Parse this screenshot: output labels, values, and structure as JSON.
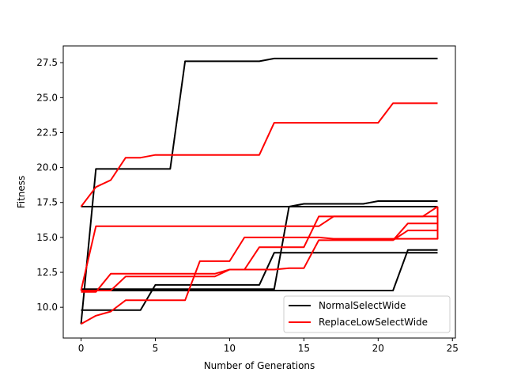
{
  "chart_data": {
    "type": "line",
    "title": "",
    "xlabel": "Number of Generations",
    "ylabel": "Fitness",
    "xlim": [
      -1.2,
      25.2
    ],
    "ylim": [
      7.8,
      28.7
    ],
    "x_ticks": [
      0,
      5,
      10,
      15,
      20,
      25
    ],
    "y_ticks": [
      10.0,
      12.5,
      15.0,
      17.5,
      20.0,
      22.5,
      25.0,
      27.5
    ],
    "x_tick_labels": [
      "0",
      "5",
      "10",
      "15",
      "20",
      "25"
    ],
    "y_tick_labels": [
      "10.0",
      "12.5",
      "15.0",
      "17.5",
      "20.0",
      "22.5",
      "25.0",
      "27.5"
    ],
    "grid": false,
    "legend_position": "lower-right",
    "legend": [
      {
        "label": "NormalSelectWide",
        "color": "#000000"
      },
      {
        "label": "ReplaceLowSelectWide",
        "color": "#ff0000"
      }
    ],
    "series": [
      {
        "group": 0,
        "color": "#000000",
        "points": [
          [
            0,
            8.8
          ],
          [
            1,
            19.9
          ],
          [
            6,
            19.9
          ],
          [
            7,
            27.6
          ],
          [
            12,
            27.6
          ],
          [
            13,
            27.8
          ],
          [
            24,
            27.8
          ]
        ]
      },
      {
        "group": 0,
        "color": "#000000",
        "points": [
          [
            0,
            17.2
          ],
          [
            14,
            17.2
          ],
          [
            15,
            17.4
          ],
          [
            19,
            17.4
          ],
          [
            20,
            17.6
          ],
          [
            24,
            17.6
          ]
        ]
      },
      {
        "group": 0,
        "color": "#000000",
        "points": [
          [
            0,
            11.3
          ],
          [
            13,
            11.3
          ],
          [
            14,
            17.2
          ],
          [
            24,
            17.2
          ]
        ]
      },
      {
        "group": 0,
        "color": "#000000",
        "points": [
          [
            0,
            9.8
          ],
          [
            4,
            9.8
          ],
          [
            5,
            11.6
          ],
          [
            12,
            11.6
          ],
          [
            13,
            13.9
          ],
          [
            24,
            13.9
          ]
        ]
      },
      {
        "group": 0,
        "color": "#000000",
        "points": [
          [
            0,
            11.2
          ],
          [
            21,
            11.2
          ],
          [
            22,
            14.1
          ],
          [
            24,
            14.1
          ]
        ]
      },
      {
        "group": 1,
        "color": "#ff0000",
        "points": [
          [
            0,
            17.2
          ],
          [
            1,
            18.6
          ],
          [
            2,
            19.1
          ],
          [
            3,
            20.7
          ],
          [
            4,
            20.7
          ],
          [
            5,
            20.9
          ],
          [
            12,
            20.9
          ],
          [
            13,
            23.2
          ],
          [
            20,
            23.2
          ],
          [
            21,
            24.6
          ],
          [
            24,
            24.6
          ]
        ]
      },
      {
        "group": 1,
        "color": "#ff0000",
        "points": [
          [
            0,
            11.2
          ],
          [
            1,
            15.8
          ],
          [
            16,
            15.8
          ],
          [
            17,
            16.5
          ],
          [
            24,
            16.5
          ]
        ]
      },
      {
        "group": 1,
        "color": "#ff0000",
        "points": [
          [
            0,
            8.8
          ],
          [
            1,
            9.4
          ],
          [
            2,
            9.7
          ],
          [
            3,
            10.5
          ],
          [
            7,
            10.5
          ],
          [
            8,
            13.3
          ],
          [
            10,
            13.3
          ],
          [
            11,
            15.0
          ],
          [
            16,
            15.0
          ],
          [
            17,
            14.9
          ],
          [
            24,
            14.9
          ],
          [
            24,
            17.2
          ]
        ]
      },
      {
        "group": 1,
        "color": "#ff0000",
        "points": [
          [
            0,
            11.1
          ],
          [
            1,
            11.1
          ],
          [
            2,
            12.4
          ],
          [
            9,
            12.4
          ],
          [
            10,
            12.7
          ],
          [
            11,
            12.7
          ],
          [
            12,
            14.3
          ],
          [
            15,
            14.3
          ],
          [
            16,
            16.5
          ],
          [
            23,
            16.5
          ],
          [
            24,
            17.2
          ]
        ]
      },
      {
        "group": 1,
        "color": "#ff0000",
        "points": [
          [
            0,
            11.2
          ],
          [
            2,
            11.2
          ],
          [
            3,
            12.2
          ],
          [
            9,
            12.2
          ],
          [
            10,
            12.7
          ],
          [
            12,
            12.7
          ],
          [
            13,
            12.7
          ],
          [
            14,
            12.8
          ],
          [
            15,
            12.8
          ],
          [
            16,
            14.8
          ],
          [
            21,
            14.8
          ],
          [
            22,
            15.5
          ],
          [
            24,
            15.5
          ]
        ]
      },
      {
        "group": 1,
        "color": "#ff0000",
        "points": [
          [
            21,
            14.8
          ],
          [
            22,
            16.0
          ],
          [
            24,
            16.0
          ]
        ]
      }
    ]
  }
}
